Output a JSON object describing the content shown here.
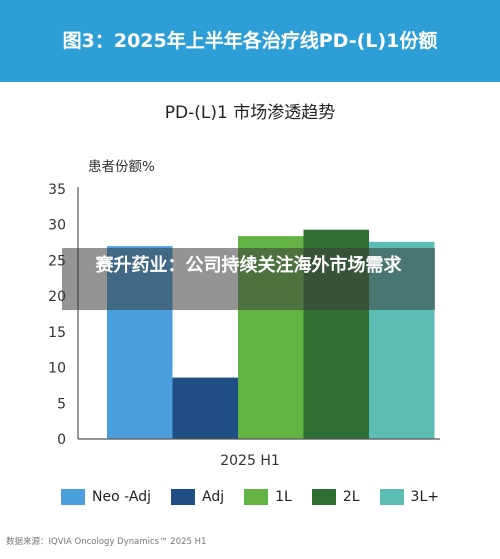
{
  "banner": {
    "title": "图3：2025年上半年各治疗线PD-(L)1份额"
  },
  "overlay": {
    "text": "赛升药业：公司持续关注海外市场需求"
  },
  "source": "数据来源：IQVIA Oncology Dynamics™ 2025 H1",
  "colors": {
    "banner": "#2e9fd6",
    "axis": "#555555"
  },
  "chart_data": {
    "type": "bar",
    "title": "PD-(L)1 市场渗透趋势",
    "ylabel": "患者份额%",
    "xlabel": "",
    "categories": [
      "2025 H1"
    ],
    "ylim": [
      0,
      35
    ],
    "yticks": [
      0,
      5,
      10,
      15,
      20,
      25,
      30,
      35
    ],
    "grid": false,
    "legend_position": "bottom",
    "series": [
      {
        "name": "Neo -Adj",
        "color": "#4a9fdc",
        "values": [
          27
        ]
      },
      {
        "name": "Adj",
        "color": "#1f4e84",
        "values": [
          8.6
        ]
      },
      {
        "name": "1L",
        "color": "#62b344",
        "values": [
          28.4
        ]
      },
      {
        "name": "2L",
        "color": "#2f6f33",
        "values": [
          29.3
        ]
      },
      {
        "name": "3L+",
        "color": "#5cbdb4",
        "values": [
          27.6
        ]
      }
    ]
  }
}
